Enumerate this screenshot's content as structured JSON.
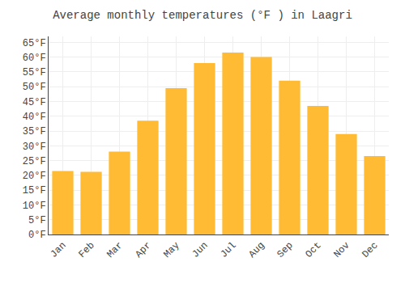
{
  "chart_data": {
    "type": "bar",
    "title": "Average monthly temperatures (°F ) in Laagri",
    "categories": [
      "Jan",
      "Feb",
      "Mar",
      "Apr",
      "May",
      "Jun",
      "Jul",
      "Aug",
      "Sep",
      "Oct",
      "Nov",
      "Dec"
    ],
    "values": [
      21.5,
      21.2,
      28.0,
      38.5,
      49.5,
      58.0,
      61.5,
      60.0,
      52.0,
      43.5,
      34.0,
      26.5
    ],
    "color": "#FFBB33",
    "ylim": [
      0,
      67
    ],
    "yticks": [
      {
        "value": 0,
        "label": "0°F"
      },
      {
        "value": 5,
        "label": "5°F"
      },
      {
        "value": 10,
        "label": "10°F"
      },
      {
        "value": 15,
        "label": "15°F"
      },
      {
        "value": 20,
        "label": "20°F"
      },
      {
        "value": 25,
        "label": "25°F"
      },
      {
        "value": 30,
        "label": "30°F"
      },
      {
        "value": 35,
        "label": "35°F"
      },
      {
        "value": 40,
        "label": "40°F"
      },
      {
        "value": 45,
        "label": "45°F"
      },
      {
        "value": 50,
        "label": "50°F"
      },
      {
        "value": 55,
        "label": "55°F"
      },
      {
        "value": 60,
        "label": "60°F"
      },
      {
        "value": 65,
        "label": "65°F"
      }
    ],
    "grid": true
  }
}
